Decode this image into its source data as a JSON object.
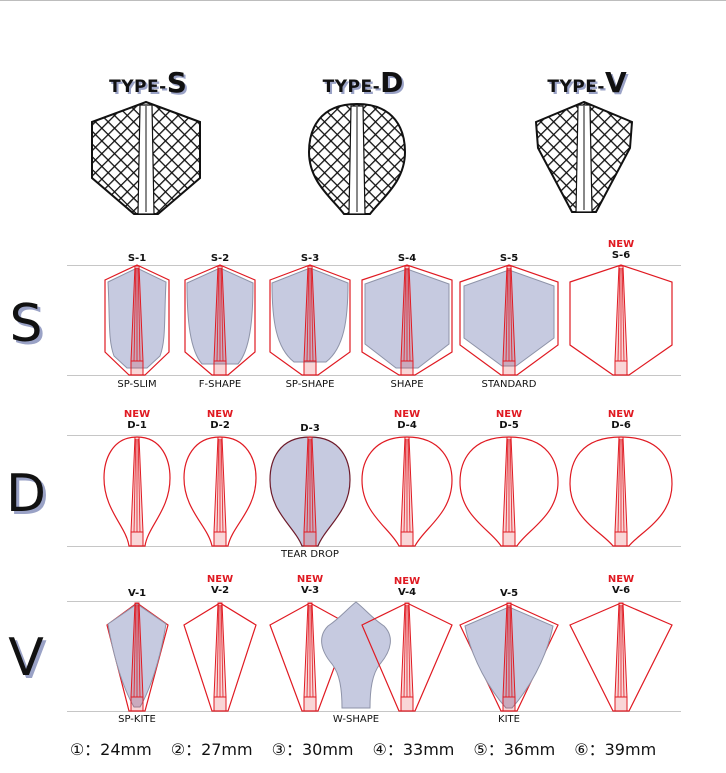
{
  "types": [
    {
      "prefix": "TYPE-",
      "letter": "S"
    },
    {
      "prefix": "TYPE-",
      "letter": "D"
    },
    {
      "prefix": "TYPE-",
      "letter": "V"
    }
  ],
  "rows": [
    {
      "letter": "S",
      "flights": [
        {
          "code": "S-1",
          "new": "",
          "name": "SP-SLIM",
          "filled": true
        },
        {
          "code": "S-2",
          "new": "",
          "name": "F-SHAPE",
          "filled": true
        },
        {
          "code": "S-3",
          "new": "",
          "name": "SP-SHAPE",
          "filled": true
        },
        {
          "code": "S-4",
          "new": "",
          "name": "SHAPE",
          "filled": true
        },
        {
          "code": "S-5",
          "new": "",
          "name": "STANDARD",
          "filled": true
        },
        {
          "code": "S-6",
          "new": "NEW",
          "name": "",
          "filled": false
        }
      ]
    },
    {
      "letter": "D",
      "flights": [
        {
          "code": "D-1",
          "new": "NEW",
          "name": "",
          "filled": false
        },
        {
          "code": "D-2",
          "new": "NEW",
          "name": "",
          "filled": false
        },
        {
          "code": "D-3",
          "new": "",
          "name": "TEAR DROP",
          "filled": true
        },
        {
          "code": "D-4",
          "new": "NEW",
          "name": "",
          "filled": false
        },
        {
          "code": "D-5",
          "new": "NEW",
          "name": "",
          "filled": false
        },
        {
          "code": "D-6",
          "new": "NEW",
          "name": "",
          "filled": false
        }
      ]
    },
    {
      "letter": "V",
      "flights": [
        {
          "code": "V-1",
          "new": "",
          "name": "SP-KITE",
          "filled": true
        },
        {
          "code": "V-2",
          "new": "NEW",
          "name": "",
          "filled": false
        },
        {
          "code": "V-3",
          "new": "NEW",
          "name": "",
          "filled": false
        },
        {
          "code": "V-4",
          "new": "NEW",
          "name": "",
          "filled": false
        },
        {
          "code": "V-5",
          "new": "",
          "name": "KITE",
          "filled": true
        },
        {
          "code": "V-6",
          "new": "NEW",
          "name": "",
          "filled": false
        }
      ],
      "extra_name": "W-SHAPE"
    }
  ],
  "legend": [
    "①：24mm",
    "②：27mm",
    "③：30mm",
    "④：33mm",
    "⑤：36mm",
    "⑥：39mm"
  ],
  "colors": {
    "outline": "#e01a22",
    "fill": "#c6cae0",
    "fill_stroke": "#8e93a8",
    "shadow": "#9aa2c6"
  }
}
